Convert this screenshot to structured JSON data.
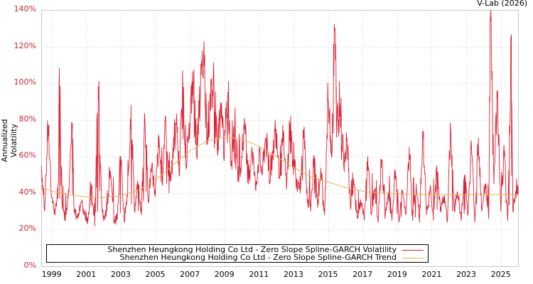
{
  "header": {
    "credit": "V-Lab (2026)"
  },
  "legend": {
    "items": [
      {
        "label": "Shenzhen Heungkong Holding Co Ltd - Zero Slope Spline-GARCH Volatility",
        "color": "#dd2233"
      },
      {
        "label": "Shenzhen Heungkong Holding Co Ltd - Zero Slope Spline-GARCH Trend",
        "color": "#ddbb55"
      }
    ]
  },
  "axes": {
    "y_label": "Annualized Volatility",
    "y_ticks": [
      "0%",
      "20%",
      "40%",
      "60%",
      "80%",
      "100%",
      "120%",
      "140%"
    ],
    "x_ticks": [
      "1999",
      "2001",
      "2003",
      "2005",
      "2007",
      "2009",
      "2011",
      "2013",
      "2015",
      "2017",
      "2019",
      "2021",
      "2023",
      "2025"
    ]
  },
  "colors": {
    "volatility": "#dd2233",
    "trend": "#ddbb55",
    "tick_text": "#cc2233",
    "grid": "#c8c8c8"
  },
  "chart_data": {
    "type": "line",
    "title": "",
    "xlabel": "",
    "ylabel": "Annualized Volatility",
    "xlim": [
      1998.4,
      2026.0
    ],
    "ylim": [
      0,
      140
    ],
    "grid": true,
    "legend_position": "bottom-inside",
    "series": [
      {
        "name": "Shenzhen Heungkong Holding Co Ltd - Zero Slope Spline-GARCH Volatility",
        "x": [
          1998.4,
          1998.6,
          1998.8,
          1999.0,
          1999.2,
          1999.4,
          1999.45,
          1999.6,
          1999.8,
          2000.0,
          2000.2,
          2000.3,
          2000.5,
          2000.7,
          2000.9,
          2001.1,
          2001.3,
          2001.5,
          2001.7,
          2001.9,
          2002.0,
          2002.2,
          2002.4,
          2002.6,
          2002.8,
          2003.0,
          2003.2,
          2003.4,
          2003.6,
          2003.8,
          2004.0,
          2004.2,
          2004.4,
          2004.6,
          2004.8,
          2005.0,
          2005.2,
          2005.4,
          2005.6,
          2005.8,
          2006.0,
          2006.2,
          2006.4,
          2006.6,
          2006.8,
          2007.0,
          2007.2,
          2007.4,
          2007.6,
          2007.8,
          2008.0,
          2008.2,
          2008.4,
          2008.6,
          2008.8,
          2009.0,
          2009.2,
          2009.4,
          2009.6,
          2009.8,
          2010.0,
          2010.2,
          2010.4,
          2010.6,
          2010.8,
          2011.0,
          2011.2,
          2011.4,
          2011.6,
          2011.8,
          2012.0,
          2012.2,
          2012.4,
          2012.6,
          2012.8,
          2013.0,
          2013.2,
          2013.4,
          2013.6,
          2013.8,
          2014.0,
          2014.2,
          2014.4,
          2014.6,
          2014.8,
          2015.0,
          2015.2,
          2015.4,
          2015.5,
          2015.7,
          2015.9,
          2016.1,
          2016.3,
          2016.5,
          2016.7,
          2016.9,
          2017.1,
          2017.3,
          2017.5,
          2017.7,
          2017.9,
          2018.1,
          2018.3,
          2018.5,
          2018.7,
          2018.9,
          2019.1,
          2019.3,
          2019.5,
          2019.7,
          2019.9,
          2020.1,
          2020.3,
          2020.5,
          2020.7,
          2020.9,
          2021.1,
          2021.3,
          2021.5,
          2021.7,
          2021.9,
          2022.1,
          2022.3,
          2022.5,
          2022.7,
          2022.9,
          2023.1,
          2023.3,
          2023.5,
          2023.7,
          2023.9,
          2024.1,
          2024.3,
          2024.4,
          2024.6,
          2024.8,
          2025.0,
          2025.2,
          2025.4,
          2025.6,
          2025.7,
          2025.9,
          2026.0
        ],
        "values": [
          55,
          30,
          77,
          38,
          28,
          45,
          108,
          35,
          25,
          40,
          78,
          30,
          26,
          35,
          28,
          24,
          45,
          22,
          98,
          35,
          25,
          30,
          52,
          24,
          26,
          60,
          25,
          38,
          88,
          30,
          45,
          28,
          80,
          35,
          55,
          38,
          65,
          45,
          82,
          40,
          60,
          78,
          50,
          95,
          55,
          75,
          100,
          60,
          90,
          113,
          70,
          85,
          100,
          62,
          88,
          60,
          95,
          55,
          78,
          48,
          60,
          72,
          45,
          65,
          42,
          58,
          50,
          70,
          45,
          62,
          75,
          48,
          68,
          42,
          78,
          50,
          45,
          40,
          70,
          35,
          30,
          60,
          32,
          50,
          28,
          90,
          60,
          129,
          75,
          88,
          55,
          70,
          32,
          45,
          26,
          35,
          25,
          60,
          28,
          42,
          24,
          58,
          26,
          38,
          25,
          52,
          24,
          40,
          28,
          65,
          25,
          45,
          24,
          70,
          28,
          42,
          25,
          55,
          30,
          38,
          24,
          75,
          30,
          40,
          25,
          50,
          28,
          65,
          24,
          70,
          30,
          45,
          26,
          134,
          45,
          92,
          30,
          60,
          25,
          119,
          30,
          42,
          40
        ],
        "color": "#dd2233"
      },
      {
        "name": "Shenzhen Heungkong Holding Co Ltd - Zero Slope Spline-GARCH Trend",
        "x": [
          1998.4,
          1999.0,
          2000.0,
          2001.0,
          2002.0,
          2003.0,
          2004.0,
          2005.0,
          2006.0,
          2007.0,
          2008.0,
          2009.0,
          2010.0,
          2011.0,
          2012.0,
          2013.0,
          2014.0,
          2015.0,
          2016.0,
          2017.0,
          2018.0,
          2019.0,
          2020.0,
          2021.0,
          2022.0,
          2023.0,
          2024.0,
          2025.0,
          2026.0
        ],
        "values": [
          43,
          41,
          39,
          38,
          37.5,
          38.5,
          41.5,
          47,
          55,
          63,
          68.5,
          70.5,
          69.5,
          65.5,
          60,
          54,
          49,
          46,
          43,
          41,
          40,
          39.5,
          39.2,
          39,
          39,
          39,
          39,
          39,
          39
        ],
        "color": "#ddbb55"
      }
    ]
  }
}
